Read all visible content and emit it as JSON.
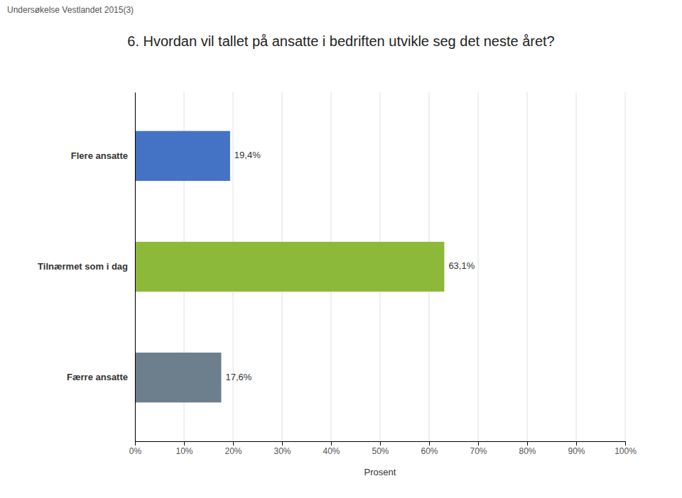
{
  "chart_data": {
    "type": "bar",
    "orientation": "horizontal",
    "title": "6. Hvordan vil tallet på ansatte i bedriften utvikle seg det neste året?",
    "subtitle": "Undersøkelse Vestlandet 2015(3)",
    "categories": [
      "Færre ansatte",
      "Tilnærmet som i dag",
      "Flere ansatte"
    ],
    "values": [
      17.6,
      63.1,
      19.4
    ],
    "value_labels": [
      "17,6%",
      "63,1%",
      "19,4%"
    ],
    "colors": [
      "#6d7f8c",
      "#8db93a",
      "#4472c4"
    ],
    "xlabel": "Prosent",
    "xlim": [
      0,
      100
    ],
    "xticks": [
      {
        "value": 0,
        "label": "0%"
      },
      {
        "value": 10,
        "label": "10%"
      },
      {
        "value": 20,
        "label": "20%"
      },
      {
        "value": 30,
        "label": "30%"
      },
      {
        "value": 40,
        "label": "40%"
      },
      {
        "value": 50,
        "label": "50%"
      },
      {
        "value": 60,
        "label": "60%"
      },
      {
        "value": 70,
        "label": "70%"
      },
      {
        "value": 80,
        "label": "80%"
      },
      {
        "value": 90,
        "label": "90%"
      },
      {
        "value": 100,
        "label": "100%"
      }
    ],
    "grid": true,
    "data_labels": true
  }
}
